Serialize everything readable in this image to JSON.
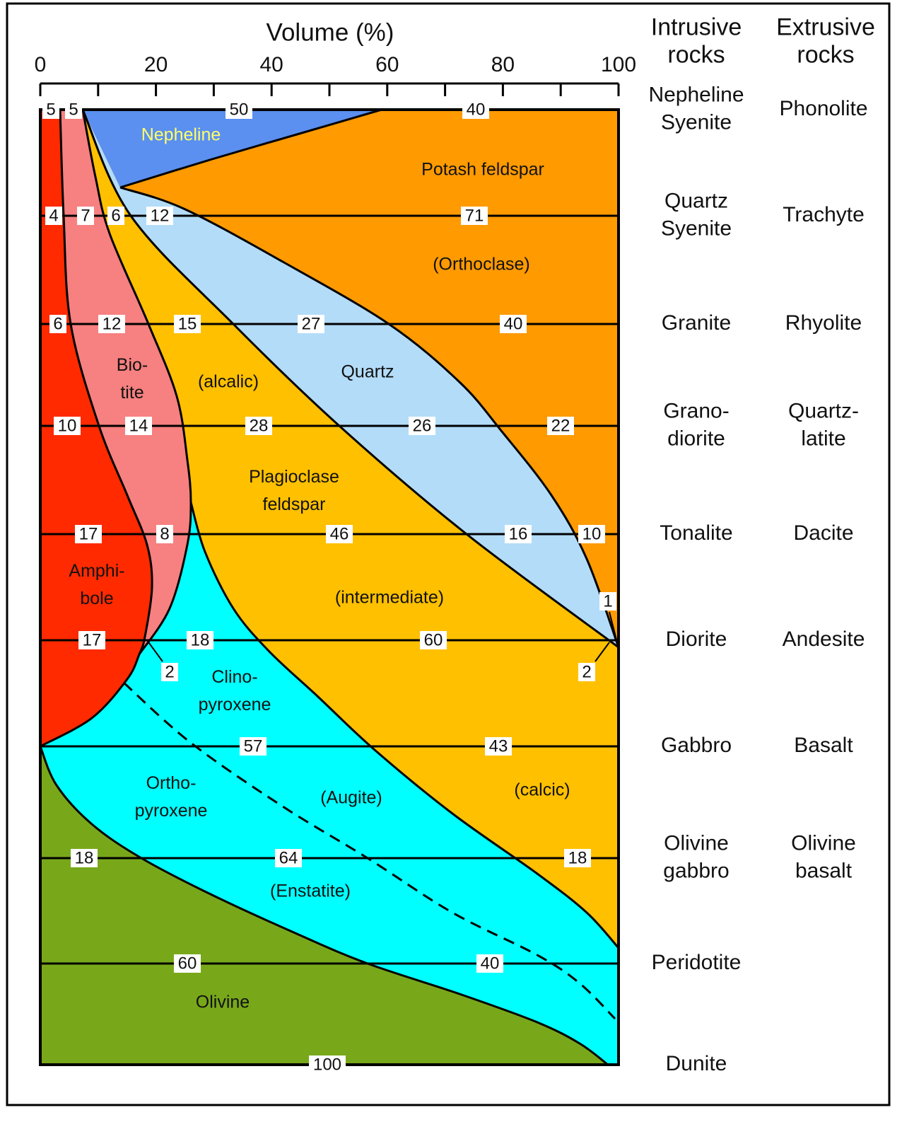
{
  "axis": {
    "title": "Volume (%)",
    "ticks": [
      0,
      20,
      40,
      60,
      80,
      100
    ]
  },
  "header": {
    "intrusive": [
      "Intrusive",
      "rocks"
    ],
    "extrusive": [
      "Extrusive",
      "rocks"
    ]
  },
  "rows": [
    {
      "values": [
        5,
        5,
        50,
        40
      ],
      "intrusive": [
        "Nepheline",
        "Syenite"
      ],
      "extrusive": [
        "Phonolite"
      ]
    },
    {
      "values": [
        4,
        7,
        6,
        12,
        71
      ],
      "intrusive": [
        "Quartz",
        "Syenite"
      ],
      "extrusive": [
        "Trachyte"
      ]
    },
    {
      "values": [
        6,
        12,
        15,
        27,
        40
      ],
      "intrusive": [
        "Granite"
      ],
      "extrusive": [
        "Rhyolite"
      ]
    },
    {
      "values": [
        10,
        14,
        28,
        26,
        22
      ],
      "intrusive": [
        "Grano-",
        "diorite"
      ],
      "extrusive": [
        "Quartz-",
        "latite"
      ]
    },
    {
      "values": [
        17,
        8,
        46,
        16,
        10
      ],
      "intrusive": [
        "Tonalite"
      ],
      "extrusive": [
        "Dacite"
      ]
    },
    {
      "values": [
        17,
        18,
        60
      ],
      "intrusive": [
        "Diorite"
      ],
      "extrusive": [
        "Andesite"
      ]
    },
    {
      "values": [
        57,
        43
      ],
      "intrusive": [
        "Gabbro"
      ],
      "extrusive": [
        "Basalt"
      ]
    },
    {
      "values": [
        18,
        64,
        18
      ],
      "intrusive": [
        "Olivine",
        "gabbro"
      ],
      "extrusive": [
        "Olivine",
        "basalt"
      ]
    },
    {
      "values": [
        60,
        40
      ],
      "intrusive": [
        "Peridotite"
      ]
    },
    {
      "values": [
        100
      ],
      "intrusive": [
        "Dunite"
      ]
    }
  ],
  "annotations": [
    2,
    2,
    1
  ],
  "regions": [
    [
      "Nepheline"
    ],
    [
      "Potash feldspar"
    ],
    [
      "(Orthoclase)"
    ],
    [
      "Quartz"
    ],
    [
      "Bio-",
      "tite"
    ],
    [
      "(alcalic)"
    ],
    [
      "Plagioclase",
      "feldspar"
    ],
    [
      "Amphi-",
      "bole"
    ],
    [
      "(intermediate)"
    ],
    [
      "Clino-",
      "pyroxene"
    ],
    [
      "Ortho-",
      "pyroxene"
    ],
    [
      "(Augite)"
    ],
    [
      "(calcic)"
    ],
    [
      "(Enstatite)"
    ],
    [
      "Olivine"
    ]
  ]
}
